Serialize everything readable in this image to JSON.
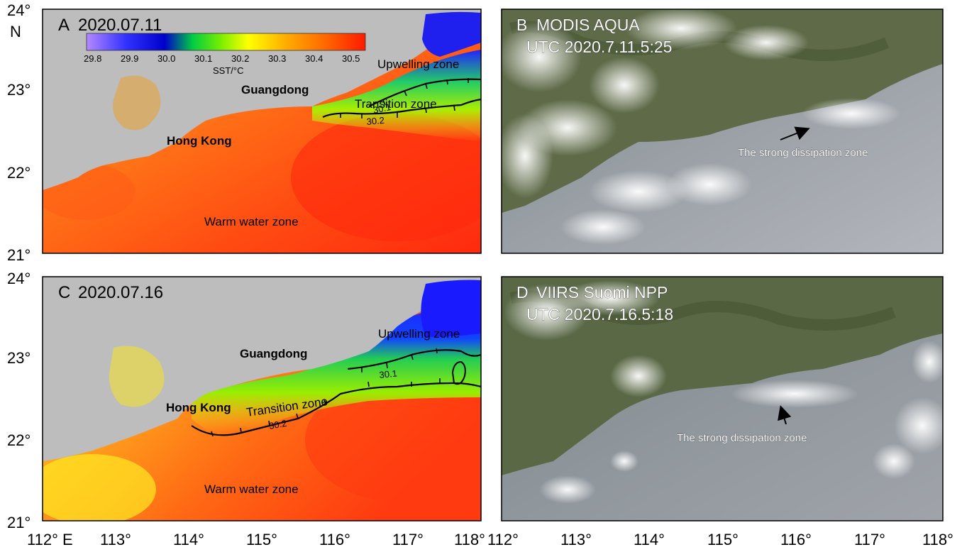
{
  "axes": {
    "lat_ticks": [
      "24°",
      "23°",
      "22°",
      "21°"
    ],
    "lat_unit": "N",
    "lon_ticks_left": [
      "112° E",
      "113°",
      "114°",
      "115°",
      "116°",
      "117°",
      "118°"
    ],
    "lon_ticks_right": [
      "112°",
      "113°",
      "114°",
      "115°",
      "116°",
      "117°",
      "118°"
    ],
    "lat_range": [
      21,
      24
    ],
    "lon_range": [
      112,
      118
    ]
  },
  "colorbar": {
    "ticks": [
      "29.8",
      "29.9",
      "30.0",
      "30.1",
      "30.2",
      "30.3",
      "30.4",
      "30.5"
    ],
    "label": "SST/°C",
    "range": [
      29.75,
      30.5
    ]
  },
  "panels": {
    "A": {
      "letter": "A",
      "date": "2020.07.11",
      "upwelling": "Upwelling zone",
      "transition": "Transition zone",
      "warm": "Warm water zone",
      "guangdong": "Guangdong",
      "hongkong": "Hong Kong",
      "iso1": "30.1",
      "iso2": "30.2"
    },
    "B": {
      "letter": "B",
      "sensor": "MODIS AQUA",
      "time": "UTC 2020.7.11.5:25",
      "annotation": "The strong dissipation zone"
    },
    "C": {
      "letter": "C",
      "date": "2020.07.16",
      "upwelling": "Upwelling zone",
      "transition": "Transition zone",
      "warm": "Warm water zone",
      "guangdong": "Guangdong",
      "hongkong": "Hong Kong",
      "iso1": "30.1",
      "iso2": "30.2"
    },
    "D": {
      "letter": "D",
      "sensor": "VIIRS Suomi NPP",
      "time": "UTC 2020.7.16.5:18",
      "annotation": "The strong dissipation zone"
    }
  },
  "colors": {
    "land": "#bdbdbd",
    "warm": "#ff3a12",
    "upwelling": "#1a1aff",
    "transition": "#33e033",
    "satellite_sea": "#8f959a",
    "cloud": "#f2f2f2"
  }
}
